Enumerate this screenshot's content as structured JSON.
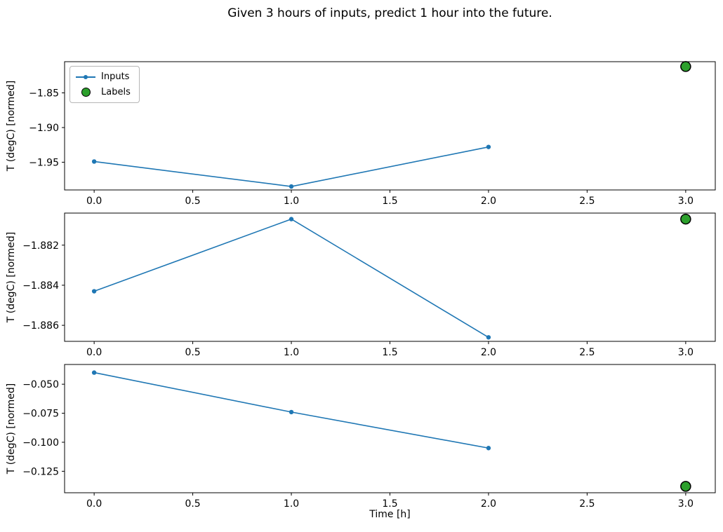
{
  "figure": {
    "title": "Given 3 hours of inputs, predict 1 hour into the future.",
    "xlabel": "Time [h]",
    "background": "#ffffff"
  },
  "legend": {
    "position": "upper-left-of-first-subplot",
    "items": [
      {
        "label": "Inputs",
        "swatch": "line-with-marker",
        "color": "#1f77b4"
      },
      {
        "label": "Labels",
        "swatch": "circle",
        "fill": "#2ca02c",
        "edge": "#000000"
      }
    ]
  },
  "chart_data": [
    {
      "type": "line",
      "title": "",
      "xlabel": "",
      "ylabel": "T (degC) [normed]",
      "xlim": [
        -0.15,
        3.15
      ],
      "ylim": [
        -1.99,
        -1.805
      ],
      "grid": false,
      "xticks": [
        0.0,
        0.5,
        1.0,
        1.5,
        2.0,
        2.5,
        3.0
      ],
      "xtick_labels": [
        "0.0",
        "0.5",
        "1.0",
        "1.5",
        "2.0",
        "2.5",
        "3.0"
      ],
      "yticks": [
        -1.85,
        -1.9,
        -1.95
      ],
      "ytick_labels": [
        "−1.85",
        "−1.90",
        "−1.95"
      ],
      "legend_visible": true,
      "series": [
        {
          "name": "Inputs",
          "plot": "line-marker",
          "color": "#1f77b4",
          "x": [
            0,
            1,
            2
          ],
          "y": [
            -1.949,
            -1.985,
            -1.928
          ]
        },
        {
          "name": "Labels",
          "plot": "scatter",
          "color": "#2ca02c",
          "edge_color": "#000000",
          "x": [
            3
          ],
          "y": [
            -1.812
          ]
        }
      ]
    },
    {
      "type": "line",
      "title": "",
      "xlabel": "",
      "ylabel": "T (degC) [normed]",
      "xlim": [
        -0.15,
        3.15
      ],
      "ylim": [
        -1.8868,
        -1.8804
      ],
      "grid": false,
      "xticks": [
        0.0,
        0.5,
        1.0,
        1.5,
        2.0,
        2.5,
        3.0
      ],
      "xtick_labels": [
        "0.0",
        "0.5",
        "1.0",
        "1.5",
        "2.0",
        "2.5",
        "3.0"
      ],
      "yticks": [
        -1.882,
        -1.884,
        -1.886
      ],
      "ytick_labels": [
        "−1.882",
        "−1.884",
        "−1.886"
      ],
      "legend_visible": false,
      "series": [
        {
          "name": "Inputs",
          "plot": "line-marker",
          "color": "#1f77b4",
          "x": [
            0,
            1,
            2
          ],
          "y": [
            -1.8843,
            -1.8807,
            -1.8866
          ]
        },
        {
          "name": "Labels",
          "plot": "scatter",
          "color": "#2ca02c",
          "edge_color": "#000000",
          "x": [
            3
          ],
          "y": [
            -1.8807
          ]
        }
      ]
    },
    {
      "type": "line",
      "title": "",
      "xlabel": "Time [h]",
      "ylabel": "T (degC) [normed]",
      "xlim": [
        -0.15,
        3.15
      ],
      "ylim": [
        -0.1435,
        -0.033
      ],
      "grid": false,
      "xticks": [
        0.0,
        0.5,
        1.0,
        1.5,
        2.0,
        2.5,
        3.0
      ],
      "xtick_labels": [
        "0.0",
        "0.5",
        "1.0",
        "1.5",
        "2.0",
        "2.5",
        "3.0"
      ],
      "yticks": [
        -0.05,
        -0.075,
        -0.1,
        -0.125
      ],
      "ytick_labels": [
        "−0.050",
        "−0.075",
        "−0.100",
        "−0.125"
      ],
      "legend_visible": false,
      "series": [
        {
          "name": "Inputs",
          "plot": "line-marker",
          "color": "#1f77b4",
          "x": [
            0,
            1,
            2
          ],
          "y": [
            -0.04,
            -0.074,
            -0.105
          ]
        },
        {
          "name": "Labels",
          "plot": "scatter",
          "color": "#2ca02c",
          "edge_color": "#000000",
          "x": [
            3
          ],
          "y": [
            -0.138
          ]
        }
      ]
    }
  ]
}
